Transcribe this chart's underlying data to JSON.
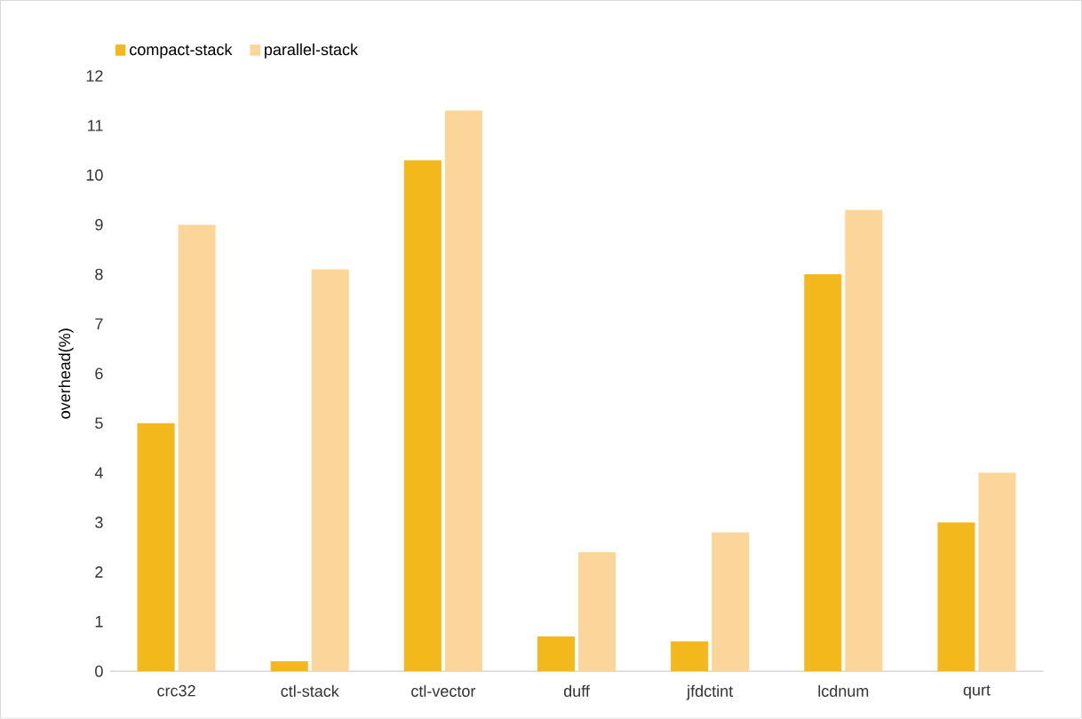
{
  "chart_data": {
    "type": "bar",
    "ylabel": "overhead(%)",
    "categories": [
      "crc32",
      "ctl-stack",
      "ctl-vector",
      "duff",
      "jfdctint",
      "lcdnum",
      "qurt"
    ],
    "series": [
      {
        "name": "compact-stack",
        "color": "#f2b81c",
        "values": [
          5.0,
          0.2,
          10.3,
          0.7,
          0.6,
          8.0,
          3.0
        ]
      },
      {
        "name": "parallel-stack",
        "color": "#fbd59a",
        "values": [
          9.0,
          8.1,
          11.3,
          2.4,
          2.8,
          9.3,
          4.0
        ]
      }
    ],
    "ylim": [
      0,
      12
    ],
    "yticks": [
      0,
      1,
      2,
      3,
      4,
      5,
      6,
      7,
      8,
      9,
      10,
      11,
      12
    ],
    "legend": "top left"
  }
}
